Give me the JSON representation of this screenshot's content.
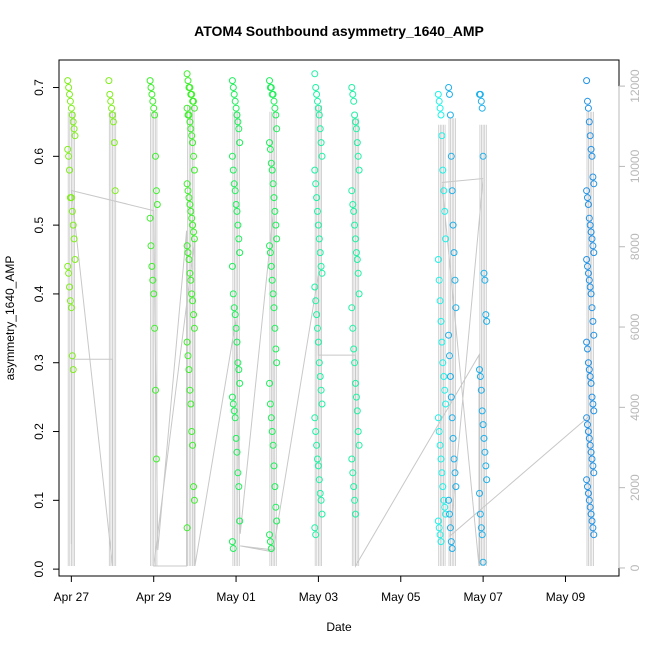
{
  "chart_data": {
    "type": "scatter",
    "title": "ATOM4 Southbound asymmetry_1640_AMP",
    "xlabel": "Date",
    "ylabel": "asymmetry_1640_AMP",
    "x_ticks": [
      "Apr 27",
      "Apr 29",
      "May 01",
      "May 03",
      "May 05",
      "May 07",
      "May 09"
    ],
    "y_ticks": [
      "0.0",
      "0.1",
      "0.2",
      "0.3",
      "0.4",
      "0.5",
      "0.6",
      "0.7"
    ],
    "y2_ticks": [
      "0",
      "2000",
      "4000",
      "6000",
      "8000",
      "10000",
      "12000"
    ],
    "xlim_days": [
      26.7,
      40.3
    ],
    "ylim": [
      -0.01,
      0.74
    ],
    "y2lim": [
      -200,
      12650
    ],
    "grid": false,
    "point_colors": [
      "#7fef1b",
      "#3cf02a",
      "#1ef05a",
      "#1df2a3",
      "#1ef2e8",
      "#1fb0ea",
      "#2293e6"
    ],
    "trace_color": "#c8c8c8",
    "clusters": [
      {
        "day": 27.0,
        "values": [
          0.71,
          0.7,
          0.69,
          0.68,
          0.67,
          0.66,
          0.65,
          0.64,
          0.63,
          0.61,
          0.6,
          0.58,
          0.54,
          0.54,
          0.52,
          0.5,
          0.48,
          0.45,
          0.44,
          0.43,
          0.41,
          0.39,
          0.38,
          0.31,
          0.29
        ]
      },
      {
        "day": 28.0,
        "values": [
          0.71,
          0.69,
          0.68,
          0.67,
          0.66,
          0.65,
          0.62,
          0.55
        ]
      },
      {
        "day": 29.0,
        "values": [
          0.71,
          0.7,
          0.69,
          0.68,
          0.67,
          0.66,
          0.6,
          0.55,
          0.53,
          0.51,
          0.47,
          0.44,
          0.42,
          0.4,
          0.35,
          0.26,
          0.16
        ]
      },
      {
        "day": 29.9,
        "values": [
          0.72,
          0.71,
          0.7,
          0.7,
          0.69,
          0.69,
          0.68,
          0.68,
          0.67,
          0.67,
          0.66,
          0.66,
          0.65,
          0.64,
          0.63,
          0.62,
          0.6,
          0.58,
          0.56,
          0.55,
          0.54,
          0.53,
          0.52,
          0.51,
          0.5,
          0.49,
          0.48,
          0.47,
          0.46,
          0.45,
          0.43,
          0.42,
          0.4,
          0.39,
          0.37,
          0.35,
          0.33,
          0.31,
          0.29,
          0.26,
          0.24,
          0.2,
          0.18,
          0.12,
          0.1,
          0.06
        ]
      },
      {
        "day": 31.0,
        "values": [
          0.71,
          0.7,
          0.69,
          0.68,
          0.67,
          0.66,
          0.65,
          0.64,
          0.62,
          0.6,
          0.58,
          0.56,
          0.55,
          0.53,
          0.52,
          0.5,
          0.48,
          0.46,
          0.44,
          0.4,
          0.38,
          0.37,
          0.35,
          0.33,
          0.3,
          0.29,
          0.27,
          0.25,
          0.24,
          0.23,
          0.22,
          0.19,
          0.17,
          0.14,
          0.12,
          0.07,
          0.04,
          0.03
        ]
      },
      {
        "day": 31.9,
        "values": [
          0.71,
          0.7,
          0.7,
          0.69,
          0.69,
          0.68,
          0.67,
          0.66,
          0.64,
          0.62,
          0.61,
          0.59,
          0.58,
          0.56,
          0.54,
          0.52,
          0.5,
          0.48,
          0.47,
          0.46,
          0.44,
          0.42,
          0.4,
          0.38,
          0.35,
          0.32,
          0.3,
          0.27,
          0.24,
          0.22,
          0.2,
          0.18,
          0.15,
          0.12,
          0.09,
          0.07,
          0.05,
          0.04,
          0.03
        ]
      },
      {
        "day": 33.0,
        "values": [
          0.72,
          0.7,
          0.69,
          0.68,
          0.67,
          0.66,
          0.64,
          0.62,
          0.6,
          0.58,
          0.56,
          0.54,
          0.52,
          0.5,
          0.48,
          0.46,
          0.44,
          0.43,
          0.41,
          0.39,
          0.37,
          0.35,
          0.33,
          0.3,
          0.28,
          0.26,
          0.24,
          0.22,
          0.2,
          0.18,
          0.16,
          0.15,
          0.13,
          0.11,
          0.1,
          0.08,
          0.06,
          0.05
        ]
      },
      {
        "day": 33.9,
        "values": [
          0.7,
          0.69,
          0.68,
          0.66,
          0.65,
          0.64,
          0.62,
          0.6,
          0.58,
          0.55,
          0.53,
          0.52,
          0.5,
          0.48,
          0.46,
          0.45,
          0.43,
          0.4,
          0.38,
          0.35,
          0.32,
          0.3,
          0.27,
          0.25,
          0.23,
          0.2,
          0.18,
          0.16,
          0.14,
          0.12,
          0.1,
          0.08
        ]
      },
      {
        "day": 36.0,
        "values": [
          0.69,
          0.68,
          0.67,
          0.66,
          0.63,
          0.58,
          0.55,
          0.52,
          0.48,
          0.45,
          0.42,
          0.39,
          0.36,
          0.33,
          0.3,
          0.28,
          0.26,
          0.24,
          0.22,
          0.2,
          0.18,
          0.16,
          0.14,
          0.12,
          0.1,
          0.09,
          0.08,
          0.07,
          0.06,
          0.05,
          0.04
        ]
      },
      {
        "day": 36.25,
        "values": [
          0.7,
          0.69,
          0.66,
          0.6,
          0.55,
          0.5,
          0.46,
          0.42,
          0.38,
          0.34,
          0.31,
          0.28,
          0.25,
          0.22,
          0.19,
          0.16,
          0.14,
          0.12,
          0.1,
          0.08,
          0.06,
          0.04,
          0.03
        ]
      },
      {
        "day": 37.0,
        "values": [
          0.69,
          0.69,
          0.68,
          0.67,
          0.6,
          0.43,
          0.42,
          0.37,
          0.36,
          0.29,
          0.28,
          0.26,
          0.23,
          0.21,
          0.19,
          0.17,
          0.15,
          0.13,
          0.11,
          0.08,
          0.06,
          0.05,
          0.01
        ]
      },
      {
        "day": 39.6,
        "values": [
          0.71,
          0.68,
          0.67,
          0.65,
          0.63,
          0.61,
          0.6,
          0.57,
          0.56,
          0.55,
          0.54,
          0.53,
          0.51,
          0.5,
          0.49,
          0.48,
          0.47,
          0.46,
          0.45,
          0.44,
          0.43,
          0.42,
          0.41,
          0.4,
          0.38,
          0.36,
          0.34,
          0.33,
          0.32,
          0.3,
          0.29,
          0.28,
          0.27,
          0.25,
          0.24,
          0.23,
          0.22,
          0.21,
          0.2,
          0.19,
          0.18,
          0.17,
          0.16,
          0.15,
          0.14,
          0.13,
          0.12,
          0.11,
          0.1,
          0.09,
          0.08,
          0.07,
          0.06,
          0.05
        ]
      }
    ],
    "trace_series": [
      {
        "day": 27.0,
        "y2": 600
      },
      {
        "day": 27.0,
        "y2": 5200
      },
      {
        "day": 28.0,
        "y2": 5200
      },
      {
        "day": 28.0,
        "y2": 50
      },
      {
        "day": 27.0,
        "y2": 9400
      },
      {
        "day": 29.0,
        "y2": 8900
      },
      {
        "day": 29.1,
        "y2": 450
      },
      {
        "day": 29.8,
        "y2": 8400
      },
      {
        "day": 29.8,
        "y2": 50
      },
      {
        "day": 29.0,
        "y2": 50
      },
      {
        "day": 30.0,
        "y2": 8200
      },
      {
        "day": 30.0,
        "y2": 50
      },
      {
        "day": 31.0,
        "y2": 6200
      },
      {
        "day": 31.1,
        "y2": 850
      },
      {
        "day": 31.9,
        "y2": 8800
      },
      {
        "day": 31.9,
        "y2": 450
      },
      {
        "day": 31.1,
        "y2": 550
      },
      {
        "day": 31.9,
        "y2": 400
      },
      {
        "day": 33.0,
        "y2": 7300
      },
      {
        "day": 33.0,
        "y2": 5300
      },
      {
        "day": 33.9,
        "y2": 5300
      },
      {
        "day": 33.9,
        "y2": 50
      },
      {
        "day": 36.9,
        "y2": 5300
      },
      {
        "day": 36.9,
        "y2": 50
      },
      {
        "day": 36.0,
        "y2": 9600
      },
      {
        "day": 37.0,
        "y2": 9700
      },
      {
        "day": 36.2,
        "y2": 800
      },
      {
        "day": 39.6,
        "y2": 3800
      }
    ]
  }
}
